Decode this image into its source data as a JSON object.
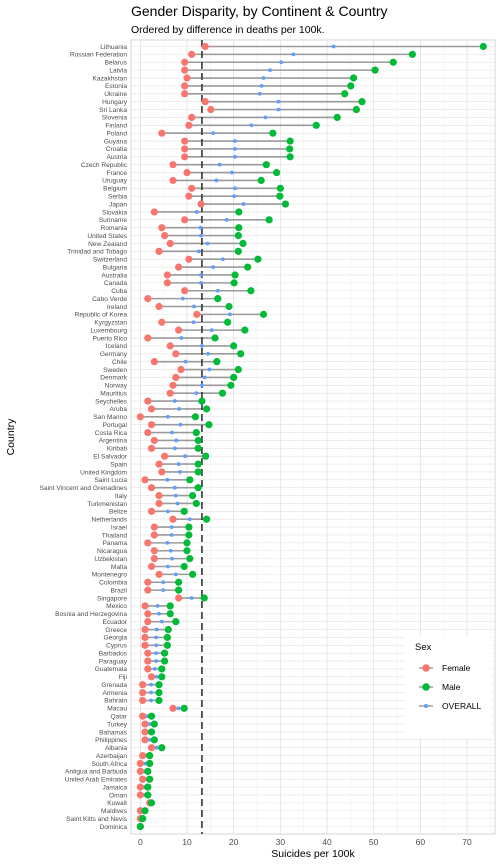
{
  "chart_data": {
    "type": "dumbbell",
    "title": "Gender Disparity, by Continent & Country",
    "subtitle": "Ordered by difference in deaths per 100k.",
    "xlabel": "Suicides per 100k",
    "ylabel": "Country",
    "xlim": [
      -2,
      76
    ],
    "xticks": [
      0,
      10,
      20,
      30,
      40,
      50,
      60,
      70
    ],
    "overall_reference_line": 13.2,
    "grid": true,
    "legend": {
      "title": "Sex",
      "position": "right",
      "entries": [
        {
          "label": "Female",
          "color": "#F8766D"
        },
        {
          "label": "Male",
          "color": "#00BA38"
        },
        {
          "label": "OVERALL",
          "color": "#619CFF"
        }
      ]
    },
    "countries": [
      "Lithuania",
      "Russian Federation",
      "Belarus",
      "Latvia",
      "Kazakhstan",
      "Estonia",
      "Ukraine",
      "Hungary",
      "Sri Lanka",
      "Slovenia",
      "Finland",
      "Poland",
      "Guyana",
      "Croatia",
      "Austria",
      "Czech Republic",
      "France",
      "Uruguay",
      "Belgium",
      "Serbia",
      "Japan",
      "Slovakia",
      "Suriname",
      "Romania",
      "United States",
      "New Zealand",
      "Trinidad and Tobago",
      "Switzerland",
      "Bulgaria",
      "Australia",
      "Canada",
      "Cuba",
      "Cabo Verde",
      "Ireland",
      "Republic of Korea",
      "Kyrgyzstan",
      "Luxembourg",
      "Puerto Rico",
      "Iceland",
      "Germany",
      "Chile",
      "Sweden",
      "Denmark",
      "Norway",
      "Mauritius",
      "Seychelles",
      "Aruba",
      "San Marino",
      "Portugal",
      "Costa Rica",
      "Argentina",
      "Kiribati",
      "El Salvador",
      "Spain",
      "United Kingdom",
      "Saint Lucia",
      "Saint Vincent and Grenadines",
      "Italy",
      "Turkmenistan",
      "Belize",
      "Netherlands",
      "Israel",
      "Thailand",
      "Panama",
      "Nicaragua",
      "Uzbekistan",
      "Malta",
      "Montenegro",
      "Colombia",
      "Brazil",
      "Singapore",
      "Mexico",
      "Bosnia and Herzegovina",
      "Ecuador",
      "Greece",
      "Georgia",
      "Cyprus",
      "Barbados",
      "Paraguay",
      "Guatemala",
      "Fiji",
      "Grenada",
      "Armenia",
      "Bahrain",
      "Macau",
      "Qatar",
      "Turkey",
      "Bahamas",
      "Philippines",
      "Albania",
      "Azerbaijan",
      "South Africa",
      "Antigua and Barbuda",
      "United Arab Emirates",
      "Jamaica",
      "Oman",
      "Kuwait",
      "Maldives",
      "Saint Kitts and Nevis",
      "Dominica"
    ],
    "series": [
      {
        "name": "Female",
        "values": [
          13.9,
          11.0,
          9.5,
          9.5,
          10.0,
          9.5,
          9.5,
          13.9,
          15.1,
          11.0,
          10.4,
          4.6,
          9.5,
          9.5,
          9.5,
          7.0,
          10.0,
          7.0,
          11.0,
          10.4,
          13.0,
          3.0,
          9.5,
          4.6,
          5.2,
          6.4,
          4.0,
          10.4,
          8.2,
          5.8,
          5.8,
          9.5,
          1.6,
          4.0,
          12.1,
          4.6,
          8.2,
          1.6,
          6.4,
          7.6,
          3.0,
          8.7,
          7.6,
          7.0,
          6.4,
          1.6,
          2.4,
          0.0,
          2.4,
          1.6,
          3.0,
          2.4,
          5.2,
          4.0,
          4.6,
          1.0,
          2.4,
          4.0,
          4.0,
          2.4,
          7.0,
          3.0,
          3.0,
          1.6,
          3.0,
          3.0,
          2.4,
          4.0,
          1.6,
          1.6,
          8.2,
          1.0,
          1.6,
          1.6,
          1.0,
          1.0,
          1.0,
          1.6,
          1.6,
          1.6,
          2.4,
          0.5,
          0.5,
          0.5,
          7.0,
          0.5,
          1.0,
          1.0,
          1.0,
          2.4,
          0.5,
          0.0,
          0.0,
          0.5,
          0.0,
          0.0,
          2.0,
          0.0,
          0.0,
          0.0
        ]
      },
      {
        "name": "Male",
        "values": [
          73.5,
          58.3,
          54.2,
          50.3,
          45.7,
          45.1,
          43.8,
          47.5,
          46.3,
          42.2,
          37.7,
          28.4,
          32.1,
          32.0,
          32.1,
          27.0,
          29.2,
          25.9,
          30.0,
          29.9,
          31.1,
          21.1,
          27.6,
          21.1,
          21.0,
          22.0,
          21.0,
          25.2,
          23.0,
          20.3,
          20.1,
          23.7,
          16.6,
          19.0,
          26.4,
          18.7,
          22.4,
          16.0,
          20.0,
          21.5,
          16.4,
          21.0,
          20.0,
          19.4,
          17.6,
          13.2,
          14.2,
          11.8,
          14.7,
          12.0,
          12.4,
          12.4,
          14.0,
          12.4,
          12.4,
          10.6,
          12.4,
          11.2,
          12.0,
          9.4,
          14.2,
          10.4,
          10.4,
          10.0,
          10.0,
          10.6,
          9.4,
          11.2,
          8.2,
          8.2,
          13.7,
          6.4,
          6.4,
          7.6,
          6.0,
          5.8,
          5.8,
          5.2,
          5.2,
          4.6,
          4.6,
          4.0,
          4.0,
          4.0,
          9.4,
          2.4,
          3.0,
          2.4,
          3.0,
          4.6,
          2.0,
          2.0,
          1.6,
          2.0,
          1.6,
          1.6,
          2.4,
          1.0,
          0.5,
          0.0
        ]
      },
      {
        "name": "OVERALL",
        "values": [
          41.4,
          32.8,
          30.2,
          27.8,
          26.4,
          26.0,
          25.6,
          29.6,
          29.6,
          26.8,
          23.8,
          15.6,
          20.3,
          20.3,
          20.3,
          17.0,
          19.6,
          16.3,
          20.3,
          20.1,
          22.1,
          12.1,
          18.5,
          12.9,
          13.0,
          14.4,
          12.5,
          17.7,
          15.6,
          13.0,
          13.0,
          16.6,
          9.1,
          11.5,
          19.2,
          11.4,
          15.3,
          8.8,
          13.2,
          14.5,
          9.7,
          14.8,
          13.8,
          13.2,
          12.0,
          7.4,
          8.3,
          5.9,
          8.6,
          6.8,
          7.7,
          7.4,
          9.6,
          8.2,
          8.5,
          5.8,
          7.4,
          7.6,
          8.0,
          5.9,
          10.6,
          6.7,
          6.7,
          5.8,
          6.5,
          6.8,
          5.9,
          7.6,
          4.9,
          4.9,
          11.0,
          3.7,
          4.0,
          4.6,
          3.5,
          3.4,
          3.4,
          3.4,
          3.4,
          3.1,
          3.5,
          2.3,
          2.3,
          2.3,
          8.2,
          1.5,
          2.0,
          1.7,
          2.0,
          3.5,
          1.3,
          1.0,
          0.8,
          1.3,
          0.8,
          0.8,
          2.2,
          0.5,
          0.3,
          0.0
        ]
      }
    ]
  }
}
